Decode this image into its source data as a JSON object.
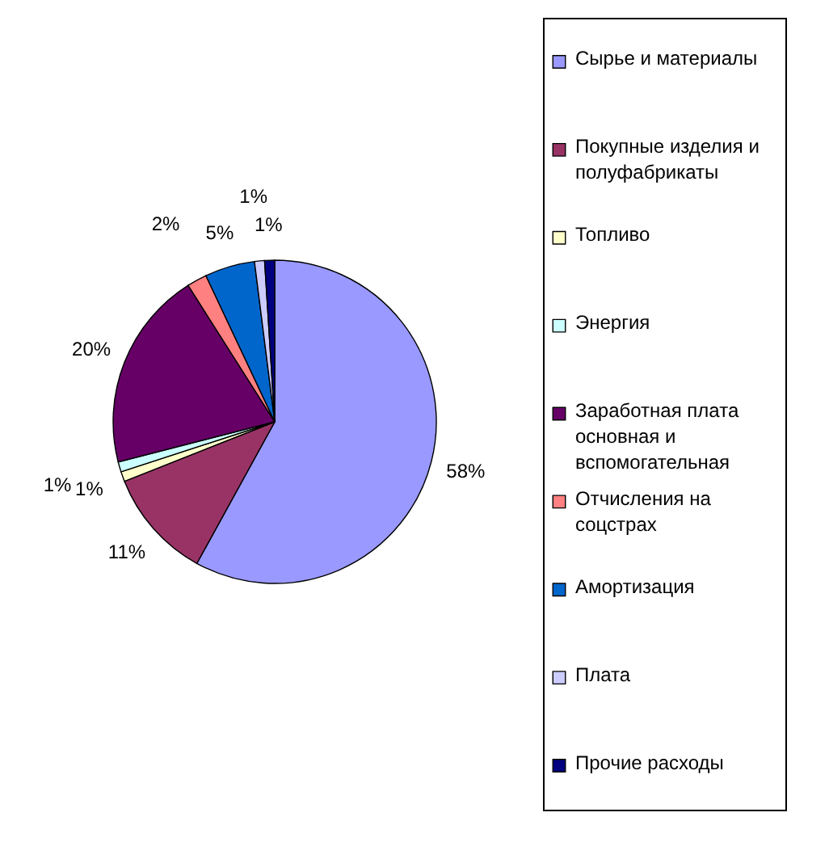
{
  "chart_data": {
    "type": "pie",
    "categories": [
      "Сырье и материалы",
      "Покупные изделия и полуфабрикаты",
      "Топливо",
      "Энергия",
      "Заработная плата основная и вспомогательная",
      "Отчисления на соцстрах",
      "Амортизация",
      "Плата",
      "Прочие расходы"
    ],
    "values": [
      58,
      11,
      1,
      1,
      20,
      2,
      5,
      1,
      1
    ],
    "value_labels": [
      "58%",
      "11%",
      "1%",
      "1%",
      "20%",
      "2%",
      "5%",
      "1%",
      "1%"
    ],
    "colors": [
      "#9999ff",
      "#993366",
      "#ffffcc",
      "#ccffff",
      "#660066",
      "#ff8080",
      "#0066cc",
      "#ccccff",
      "#000080"
    ],
    "legend": "right"
  }
}
